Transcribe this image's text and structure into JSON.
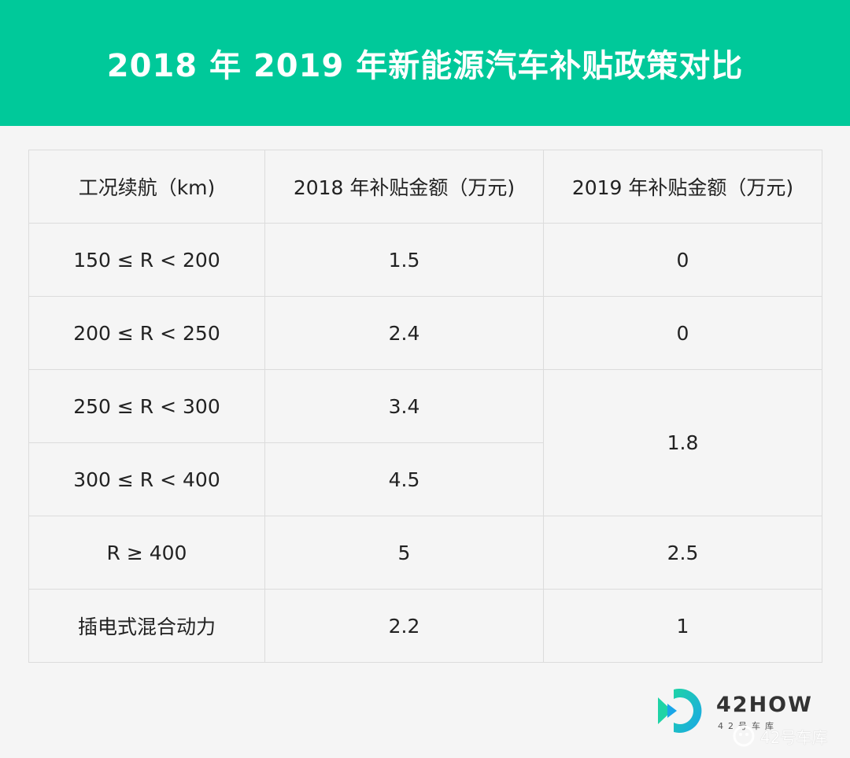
{
  "title": "2018 年 2019 年新能源汽车补贴政策对比",
  "table": {
    "headers": [
      "工况续航（km)",
      "2018 年补贴金额（万元)",
      "2019 年补贴金额（万元)"
    ],
    "rows": [
      {
        "range": "150 ≤ R < 200",
        "y2018": "1.5",
        "y2019": "0"
      },
      {
        "range": "200 ≤ R < 250",
        "y2018": "2.4",
        "y2019": "0"
      },
      {
        "range": "250 ≤ R < 300",
        "y2018": "3.4",
        "y2019": "1.8"
      },
      {
        "range": "300 ≤ R < 400",
        "y2018": "4.5"
      },
      {
        "range": "R ≥ 400",
        "y2018": "5",
        "y2019": "2.5"
      },
      {
        "range": "插电式混合动力",
        "y2018": "2.2",
        "y2019": "1"
      }
    ]
  },
  "brand": {
    "name": "42HOW",
    "subtitle": "42号车库"
  },
  "watermark": {
    "text": "42号车库"
  },
  "colors": {
    "header_bg": "#00c99a",
    "logo_green": "#1fd3a6",
    "logo_blue": "#1aa6e8"
  }
}
